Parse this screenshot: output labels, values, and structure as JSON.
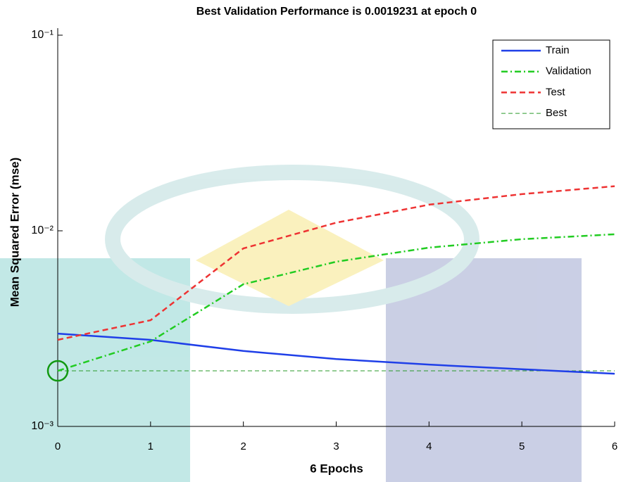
{
  "chart_data": {
    "type": "line",
    "title": "Best Validation Performance is 0.0019231 at epoch 0",
    "xlabel": "6 Epochs",
    "ylabel": "Mean Squared Error  (mse)",
    "x": [
      0,
      1,
      2,
      3,
      4,
      5,
      6
    ],
    "xlim": [
      0,
      6
    ],
    "xticks": [
      0,
      1,
      2,
      3,
      4,
      5,
      6
    ],
    "ylim": [
      0.001,
      0.1
    ],
    "yscale": "log",
    "yticks": [
      {
        "value": 0.001,
        "label": "10⁻³"
      },
      {
        "value": 0.01,
        "label": "10⁻²"
      },
      {
        "value": 0.1,
        "label": "10⁻¹"
      }
    ],
    "legend": "upper right",
    "series": [
      {
        "name": "Train",
        "color": "#1f3fe8",
        "linestyle": "solid",
        "values": [
          0.00298,
          0.00277,
          0.00243,
          0.00221,
          0.00207,
          0.00196,
          0.00186
        ]
      },
      {
        "name": "Validation",
        "color": "#22cc22",
        "linestyle": "dashdot",
        "values": [
          0.0019231,
          0.00272,
          0.00533,
          0.00695,
          0.0082,
          0.00906,
          0.0096
        ]
      },
      {
        "name": "Test",
        "color": "#ee3333",
        "linestyle": "dashed",
        "values": [
          0.00277,
          0.00349,
          0.00813,
          0.011,
          0.0136,
          0.0154,
          0.0169
        ]
      }
    ],
    "best": {
      "name": "Best",
      "color": "#2a9a2a",
      "epoch": 0,
      "value": 0.0019231
    }
  }
}
